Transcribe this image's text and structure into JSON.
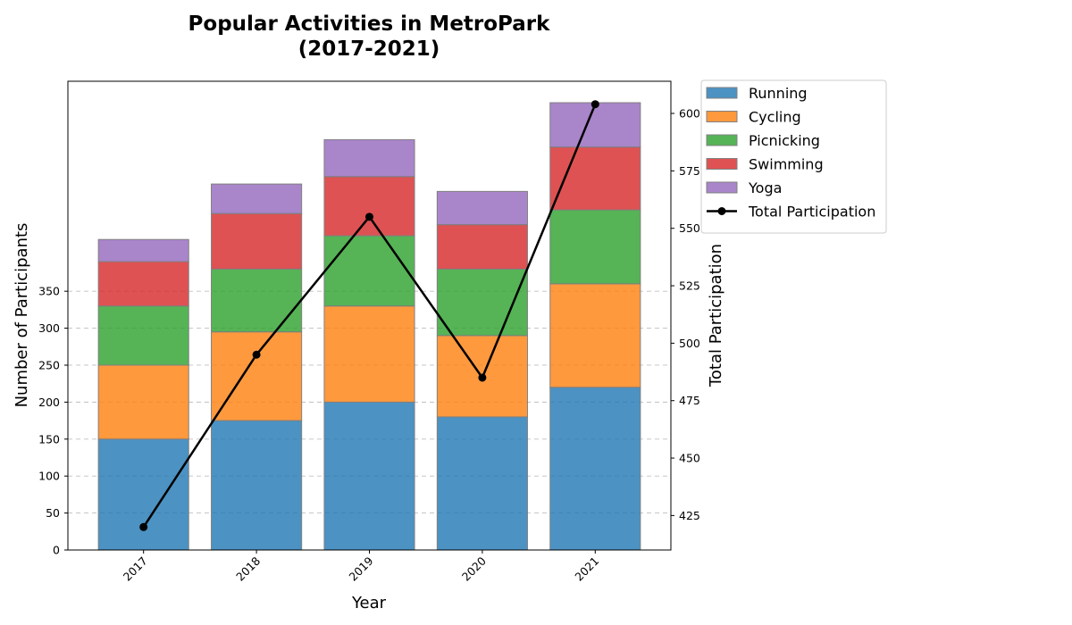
{
  "chart_data": {
    "type": "bar",
    "stacked": true,
    "title_lines": [
      "Popular Activities in MetroPark",
      "(2017-2021)"
    ],
    "xlabel": "Year",
    "ylabel": "Number of Participants",
    "y2label": "Total Participation",
    "categories": [
      "2017",
      "2018",
      "2019",
      "2020",
      "2021"
    ],
    "series": [
      {
        "name": "Running",
        "color": "#1f77b4",
        "values": [
          150,
          175,
          200,
          180,
          220
        ]
      },
      {
        "name": "Cycling",
        "color": "#ff7f0e",
        "values": [
          100,
          120,
          130,
          110,
          140
        ]
      },
      {
        "name": "Picnicking",
        "color": "#2ca02c",
        "values": [
          80,
          85,
          95,
          90,
          100
        ]
      },
      {
        "name": "Swimming",
        "color": "#d62728",
        "values": [
          60,
          75,
          80,
          60,
          85
        ]
      },
      {
        "name": "Yoga",
        "color": "#9467bd",
        "values": [
          30,
          40,
          50,
          45,
          60
        ]
      }
    ],
    "line_series": {
      "name": "Total Participation",
      "color": "#000000",
      "values": [
        420,
        495,
        555,
        485,
        604
      ],
      "axis": "right"
    },
    "y_ticks": [
      0,
      50,
      100,
      150,
      200,
      250,
      300,
      350
    ],
    "ylim": [
      0,
      634
    ],
    "y2_ticks": [
      425,
      450,
      475,
      500,
      525,
      550,
      575,
      600
    ],
    "y2lim": [
      410,
      614
    ],
    "grid": true,
    "legend_position": "outside-top-right"
  }
}
